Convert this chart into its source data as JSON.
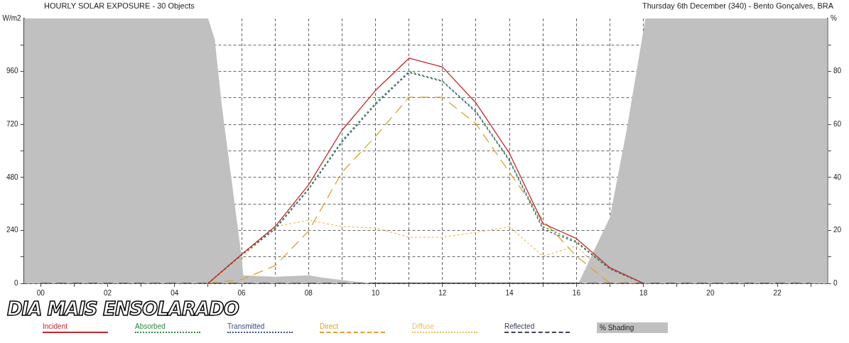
{
  "chart_data": {
    "type": "line",
    "title": "HOURLY SOLAR EXPOSURE - 30 Objects",
    "subtitle": "Thursday 6th December (340) - Bento Gonçalves, BRA",
    "ylabel": "W/m2",
    "y2label": "%",
    "annotations": [
      "DIA MAIS ENSOLARADO"
    ],
    "x": [
      0,
      1,
      2,
      3,
      4,
      5,
      6,
      7,
      8,
      9,
      10,
      11,
      12,
      13,
      14,
      15,
      16,
      17,
      18,
      19,
      20,
      21,
      22,
      23
    ],
    "xlim": [
      -0.5,
      23.5
    ],
    "xticks": [
      {
        "value": 0,
        "label": "00"
      },
      {
        "value": 1,
        "label": null
      },
      {
        "value": 2,
        "label": "02"
      },
      {
        "value": 3,
        "label": null
      },
      {
        "value": 4,
        "label": "04"
      },
      {
        "value": 5,
        "label": null
      },
      {
        "value": 6,
        "label": "06"
      },
      {
        "value": 7,
        "label": null
      },
      {
        "value": 8,
        "label": "08"
      },
      {
        "value": 9,
        "label": null
      },
      {
        "value": 10,
        "label": "10"
      },
      {
        "value": 11,
        "label": null
      },
      {
        "value": 12,
        "label": "12"
      },
      {
        "value": 13,
        "label": null
      },
      {
        "value": 14,
        "label": "14"
      },
      {
        "value": 15,
        "label": null
      },
      {
        "value": 16,
        "label": "16"
      },
      {
        "value": 17,
        "label": null
      },
      {
        "value": 18,
        "label": "18"
      },
      {
        "value": 19,
        "label": null
      },
      {
        "value": 20,
        "label": "20"
      },
      {
        "value": 21,
        "label": null
      },
      {
        "value": 22,
        "label": "22"
      },
      {
        "value": 23,
        "label": null
      }
    ],
    "ylim": [
      0,
      1200
    ],
    "yticks": [
      0,
      {
        "value": 120,
        "label": null
      },
      240,
      {
        "value": 360,
        "label": null
      },
      480,
      {
        "value": 600,
        "label": null
      },
      720,
      {
        "value": 840,
        "label": null
      },
      960,
      {
        "value": 1080,
        "label": null
      }
    ],
    "y2lim": [
      0,
      100
    ],
    "y2ticks": [
      0,
      {
        "value": 10,
        "label": null
      },
      20,
      {
        "value": 30,
        "label": null
      },
      40,
      {
        "value": 50,
        "label": null
      },
      60,
      {
        "value": 70,
        "label": null
      },
      80,
      {
        "value": 90,
        "label": null
      }
    ],
    "grid": true,
    "legend": "bottom",
    "marker": "none",
    "series": [
      {
        "name": "Incident",
        "color": "#c0282d",
        "line_style": "solid",
        "values": [
          null,
          null,
          null,
          null,
          null,
          0,
          131,
          257,
          446,
          694,
          874,
          1020,
          980,
          817,
          589,
          271,
          203,
          71,
          0,
          null,
          null,
          null,
          null,
          null
        ]
      },
      {
        "name": "Absorbed",
        "color": "#2f8a3c",
        "line_style": "dotted",
        "values": [
          null,
          null,
          null,
          null,
          null,
          0,
          131,
          250,
          429,
          646,
          817,
          960,
          917,
          780,
          560,
          257,
          190,
          65,
          0,
          null,
          null,
          null,
          null,
          null
        ]
      },
      {
        "name": "Transmitted",
        "color": "#3a4a8a",
        "line_style": "dotted",
        "values": [
          null,
          null,
          null,
          null,
          null,
          0,
          128,
          245,
          425,
          640,
          810,
          955,
          915,
          775,
          555,
          245,
          185,
          65,
          0,
          null,
          null,
          null,
          null,
          null
        ]
      },
      {
        "name": "Direct",
        "color": "#e0a030",
        "line_style": "dashed",
        "values": [
          null,
          null,
          null,
          null,
          null,
          0,
          17,
          80,
          237,
          503,
          666,
          843,
          843,
          723,
          503,
          286,
          123,
          0,
          null,
          null,
          null,
          null,
          null,
          null
        ]
      },
      {
        "name": "Diffuse",
        "color": "#f0c060",
        "line_style": "dotted",
        "values": [
          null,
          null,
          null,
          null,
          null,
          0,
          114,
          257,
          286,
          257,
          251,
          209,
          209,
          231,
          257,
          123,
          170,
          20,
          0,
          null,
          null,
          null,
          null,
          null
        ]
      },
      {
        "name": "Reflected",
        "color": "#404060",
        "line_style": "dashed",
        "values": [
          0,
          0,
          0,
          0,
          0,
          0,
          0,
          0,
          0,
          0,
          0,
          0,
          0,
          0,
          0,
          0,
          0,
          0,
          0,
          0,
          0,
          0,
          0,
          0
        ]
      },
      {
        "name": "% Shading",
        "type": "area",
        "axis": "y2",
        "color": "#c0c0c0",
        "x": [
          -0.5,
          5,
          5.2,
          5.4,
          6,
          6.05,
          7,
          8,
          8.5,
          9.5,
          10,
          16,
          16.06,
          17,
          17.5,
          18.06,
          23.5
        ],
        "values": [
          100,
          100,
          92,
          68,
          10,
          3,
          2.5,
          3,
          2,
          0.5,
          0,
          0,
          0,
          25,
          58,
          100,
          100
        ]
      }
    ]
  }
}
